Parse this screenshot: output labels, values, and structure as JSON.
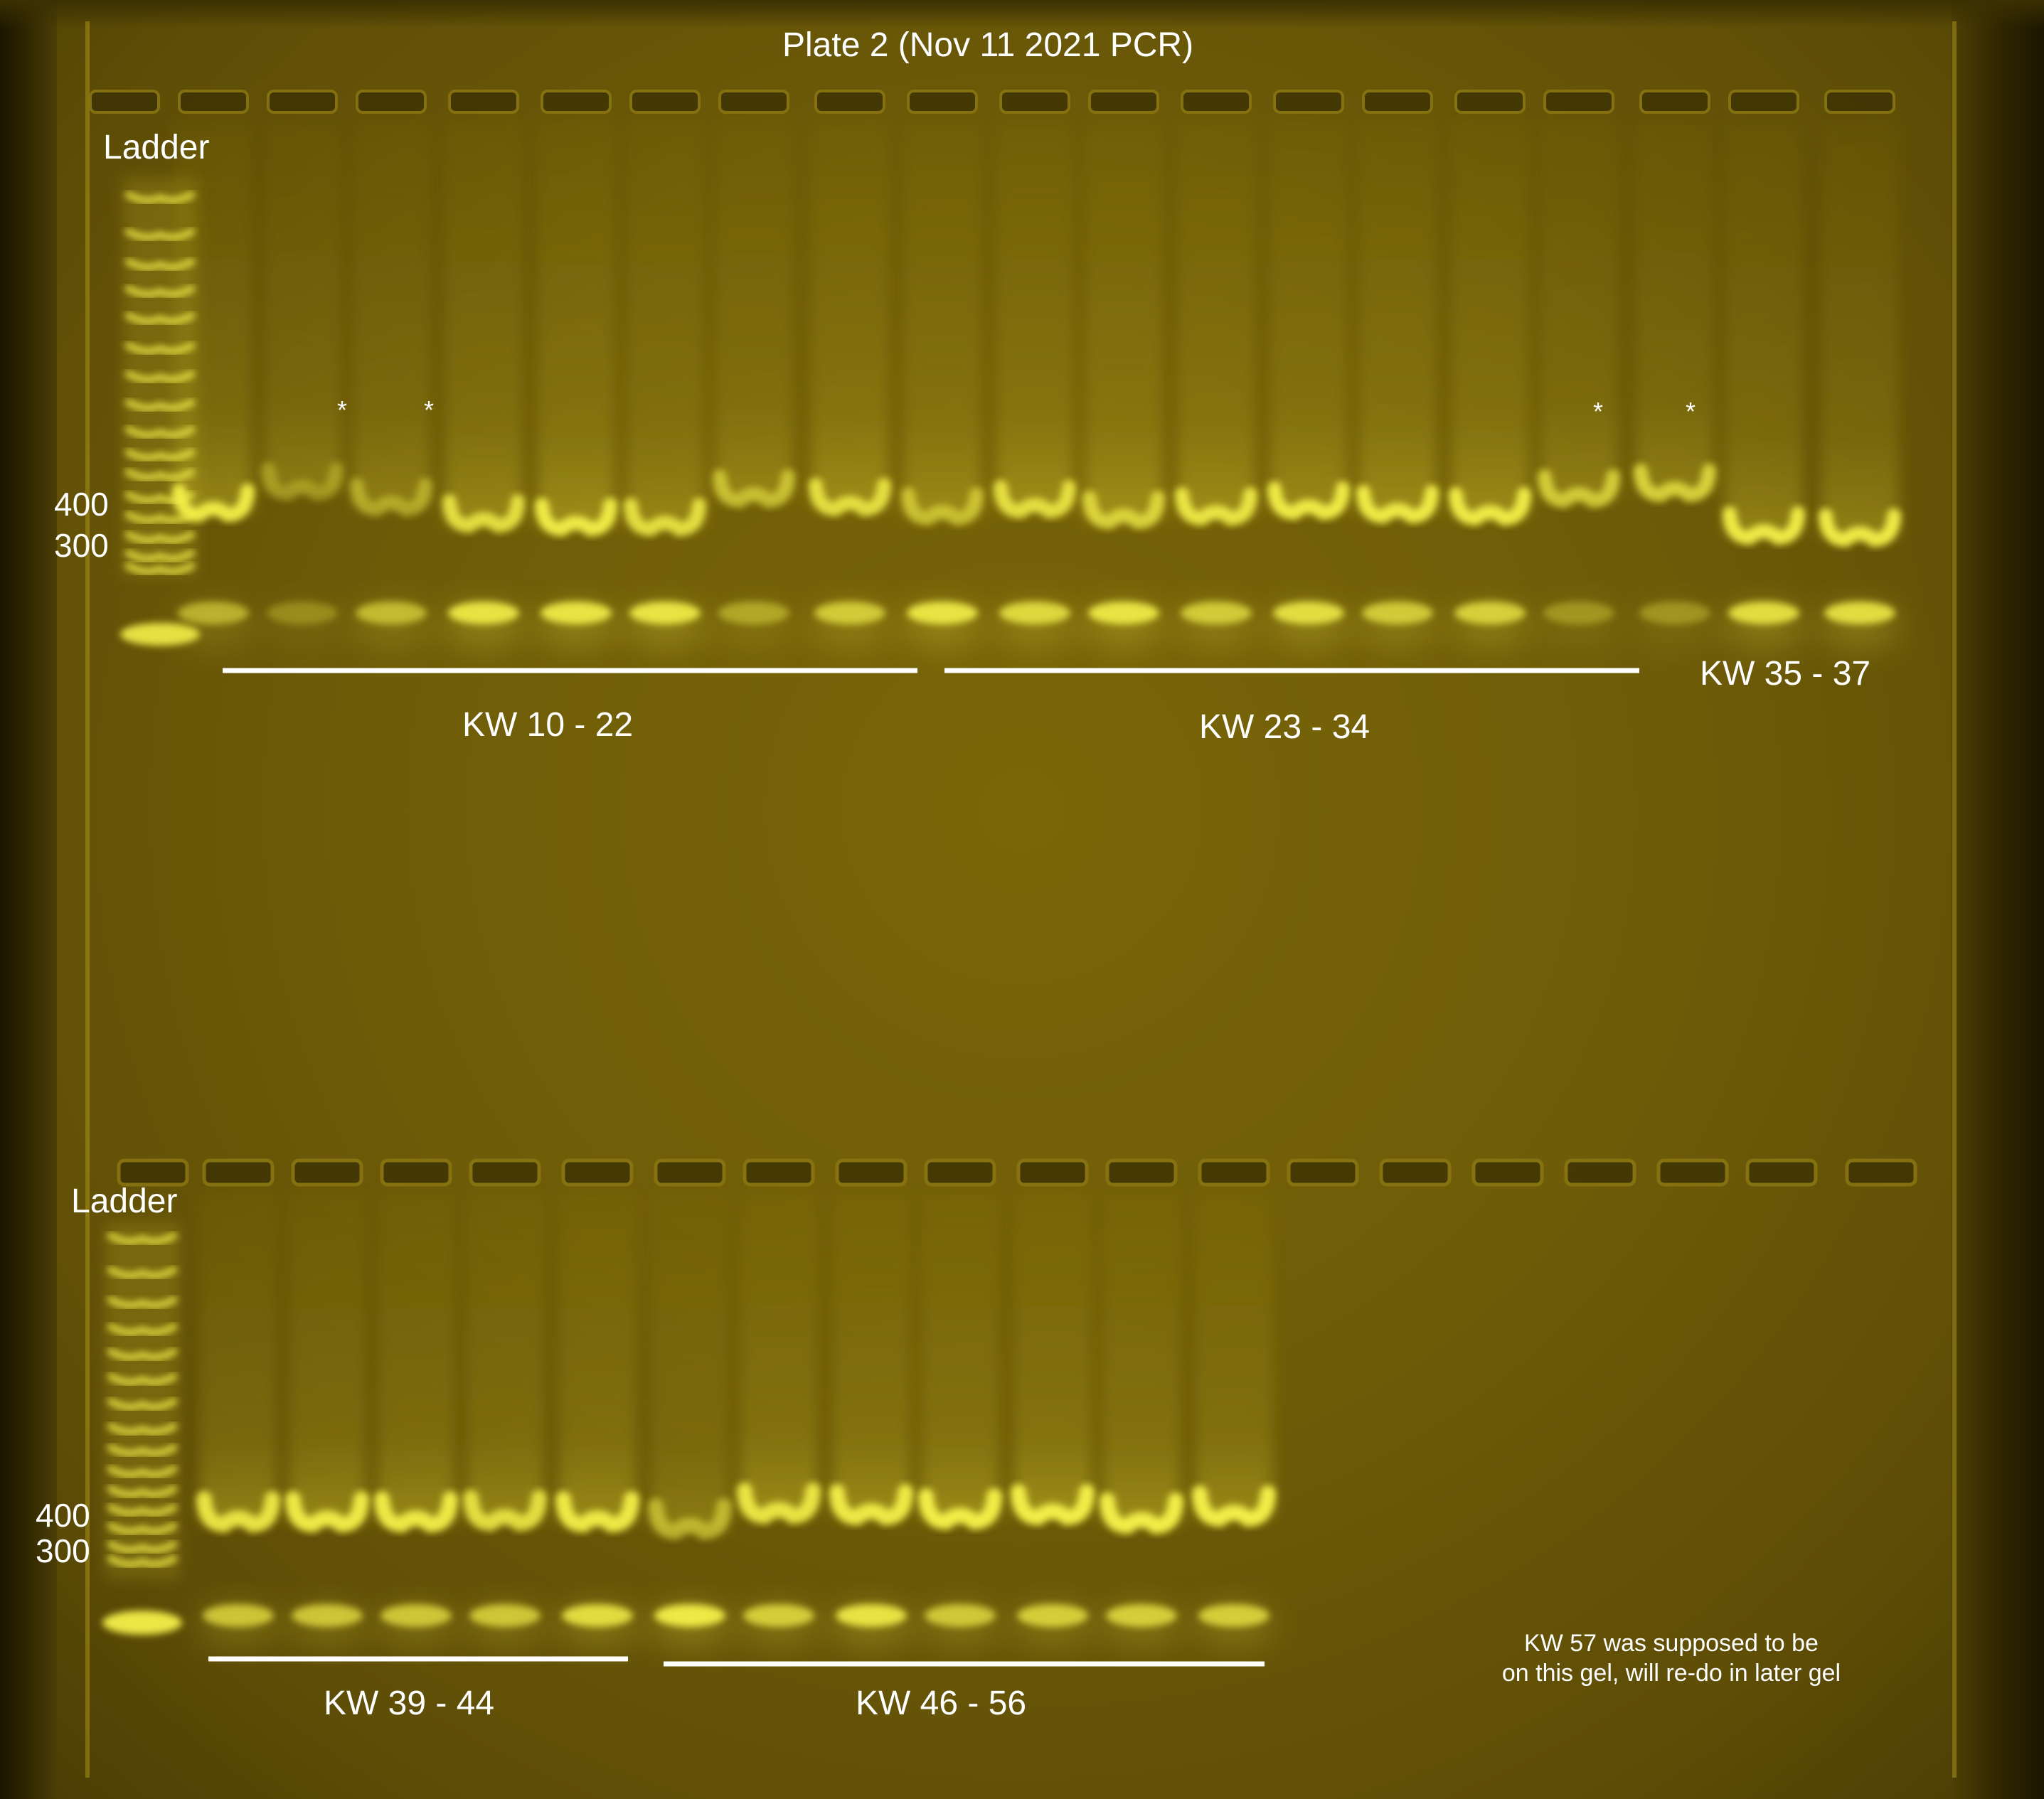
{
  "title": "Plate 2 (Nov 11 2021 PCR)",
  "ladder_labels": {
    "top": "Ladder",
    "bottom": "Ladder"
  },
  "size_markers": {
    "top": {
      "upper": "400",
      "lower": "300"
    },
    "bottom": {
      "upper": "400",
      "lower": "300"
    }
  },
  "asterisks": [
    "*",
    "*",
    "*",
    "*"
  ],
  "groups_top": [
    {
      "label": "KW 10 - 22"
    },
    {
      "label": "KW 23 - 34"
    },
    {
      "label": "KW 35 - 37"
    }
  ],
  "groups_bottom": [
    {
      "label": "KW 39 - 44"
    },
    {
      "label": "KW 46 - 56"
    }
  ],
  "note": {
    "line1": "KW 57 was supposed to be",
    "line2": "on this gel, will re-do in later gel"
  },
  "colors": {
    "gel_background": "#6e5c08",
    "band": "#f4f04a",
    "label_text": "#ffffff"
  }
}
